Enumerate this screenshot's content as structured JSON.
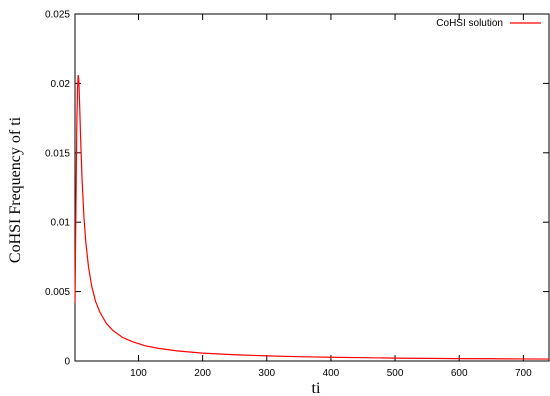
{
  "chart_data": {
    "type": "line",
    "xlabel": "ti",
    "ylabel": "CoHSI Frequency of ti",
    "xlim": [
      1,
      740
    ],
    "ylim": [
      0,
      0.025
    ],
    "x_ticks": [
      "100",
      "200",
      "300",
      "400",
      "500",
      "600",
      "700"
    ],
    "x_tick_values": [
      100,
      200,
      300,
      400,
      500,
      600,
      700
    ],
    "y_ticks": [
      "0",
      "0.005",
      "0.01",
      "0.015",
      "0.02",
      "0.025"
    ],
    "y_tick_values": [
      0,
      0.005,
      0.01,
      0.015,
      0.02,
      0.025
    ],
    "grid": false,
    "legend_position": "top-right",
    "series": [
      {
        "name": "CoHSI solution",
        "color": "#ff0000",
        "x": [
          1,
          2,
          3,
          4,
          5,
          6,
          7,
          8,
          10,
          12,
          15,
          18,
          22,
          27,
          33,
          40,
          50,
          60,
          75,
          90,
          110,
          130,
          160,
          200,
          250,
          300,
          350,
          400,
          450,
          500,
          550,
          600,
          650,
          700,
          740
        ],
        "y": [
          0.0042,
          0.009,
          0.0135,
          0.0175,
          0.0197,
          0.0206,
          0.0202,
          0.0188,
          0.0157,
          0.0131,
          0.0103,
          0.0085,
          0.0068,
          0.0054,
          0.0043,
          0.0035,
          0.0027,
          0.0022,
          0.0017,
          0.0014,
          0.0011,
          0.00092,
          0.00073,
          0.00057,
          0.00045,
          0.00037,
          0.00031,
          0.00027,
          0.00024,
          0.00021,
          0.00019,
          0.00017,
          0.00016,
          0.00015,
          0.00014
        ]
      }
    ]
  }
}
